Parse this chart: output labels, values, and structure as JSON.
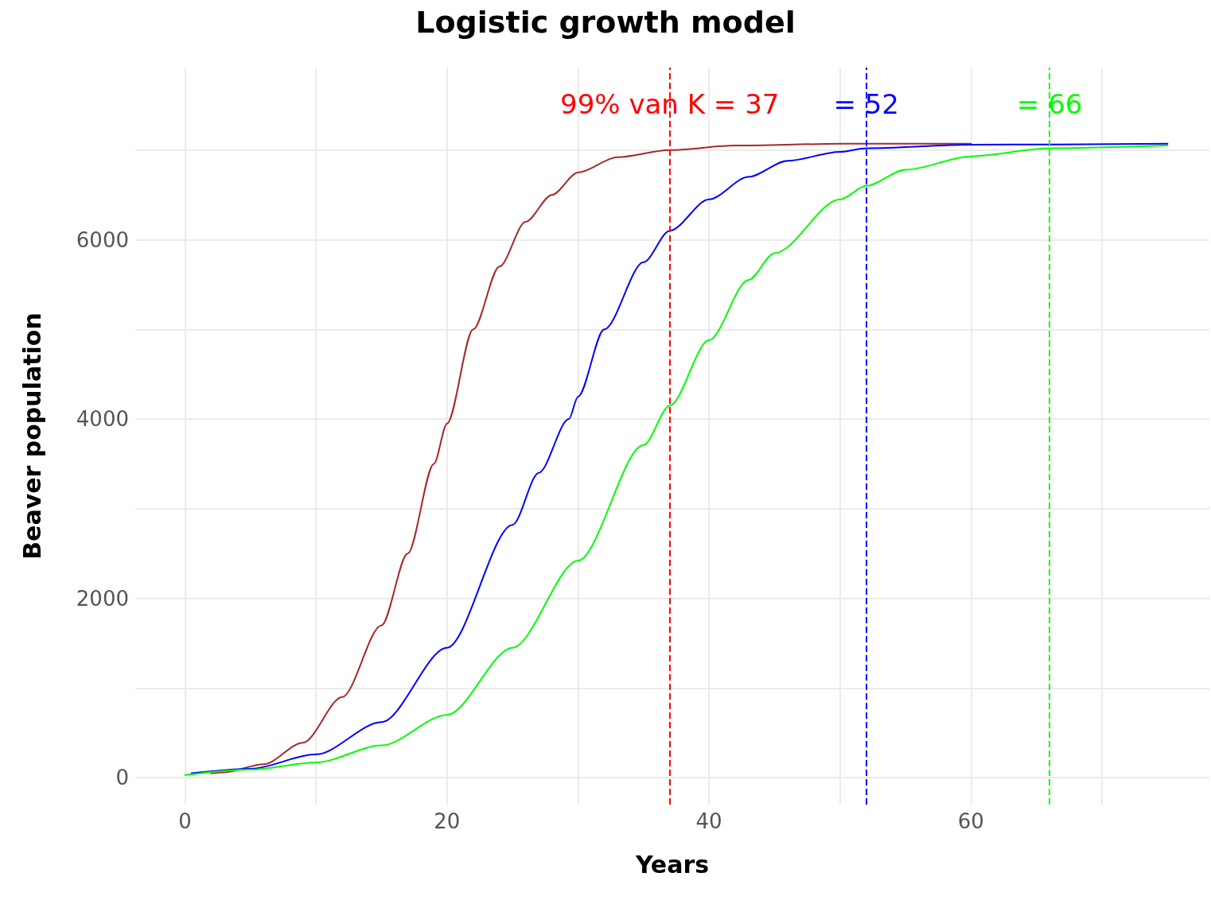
{
  "chart_data": {
    "type": "line",
    "title": "Logistic growth model",
    "xlabel": "Years",
    "ylabel": "Beaver population",
    "xlim": [
      -3.8,
      78.2
    ],
    "ylim": [
      -300,
      7920
    ],
    "xticks": [
      0,
      {
        "value": 10,
        "label": null
      },
      20,
      {
        "value": 30,
        "label": null
      },
      40,
      {
        "value": 50,
        "label": null
      },
      60,
      {
        "value": 70,
        "label": null
      }
    ],
    "yticks": [
      0,
      {
        "value": 1000,
        "label": null
      },
      2000,
      {
        "value": 3000,
        "label": null
      },
      4000,
      {
        "value": 5000,
        "label": null
      },
      6000,
      {
        "value": 7000,
        "label": null
      }
    ],
    "grid": true,
    "marker": "none",
    "line_style": "solid",
    "series": [
      {
        "color": "#a52a2a",
        "x": [
          2,
          3,
          6,
          9,
          12,
          15,
          17,
          19,
          20,
          22,
          24,
          26,
          28,
          30,
          33,
          37,
          42,
          50,
          60
        ],
        "values": [
          50,
          60,
          150,
          390,
          900,
          1700,
          2500,
          3500,
          3950,
          5000,
          5700,
          6200,
          6500,
          6750,
          6920,
          7000,
          7050,
          7070,
          7070
        ]
      },
      {
        "color": "#0000ff",
        "x": [
          0.5,
          5,
          10,
          15,
          20,
          25,
          27,
          29.3,
          30,
          32,
          35,
          37,
          40,
          43,
          46,
          50,
          52,
          60,
          75
        ],
        "values": [
          50,
          100,
          260,
          620,
          1450,
          2820,
          3400,
          4000,
          4250,
          5000,
          5750,
          6100,
          6450,
          6700,
          6880,
          6980,
          7020,
          7060,
          7070
        ]
      },
      {
        "color": "#00ff00",
        "x": [
          0,
          5,
          10,
          15,
          20,
          25,
          30,
          35,
          37,
          40,
          43,
          45,
          50,
          52,
          55,
          60,
          66,
          75
        ],
        "values": [
          30,
          90,
          170,
          360,
          700,
          1450,
          2420,
          3710,
          4150,
          4880,
          5550,
          5850,
          6450,
          6600,
          6780,
          6930,
          7020,
          7050
        ]
      }
    ],
    "ref_lines": [
      {
        "axis": "x",
        "value": 37,
        "label": "99% van K = 37",
        "color": "#ff0000",
        "line_style": "dashed"
      },
      {
        "axis": "x",
        "value": 52,
        "label": "= 52",
        "color": "#0000ff",
        "line_style": "dashed"
      },
      {
        "axis": "x",
        "value": 66,
        "label": "= 66",
        "color": "#00ff00",
        "line_style": "dashed"
      }
    ]
  }
}
